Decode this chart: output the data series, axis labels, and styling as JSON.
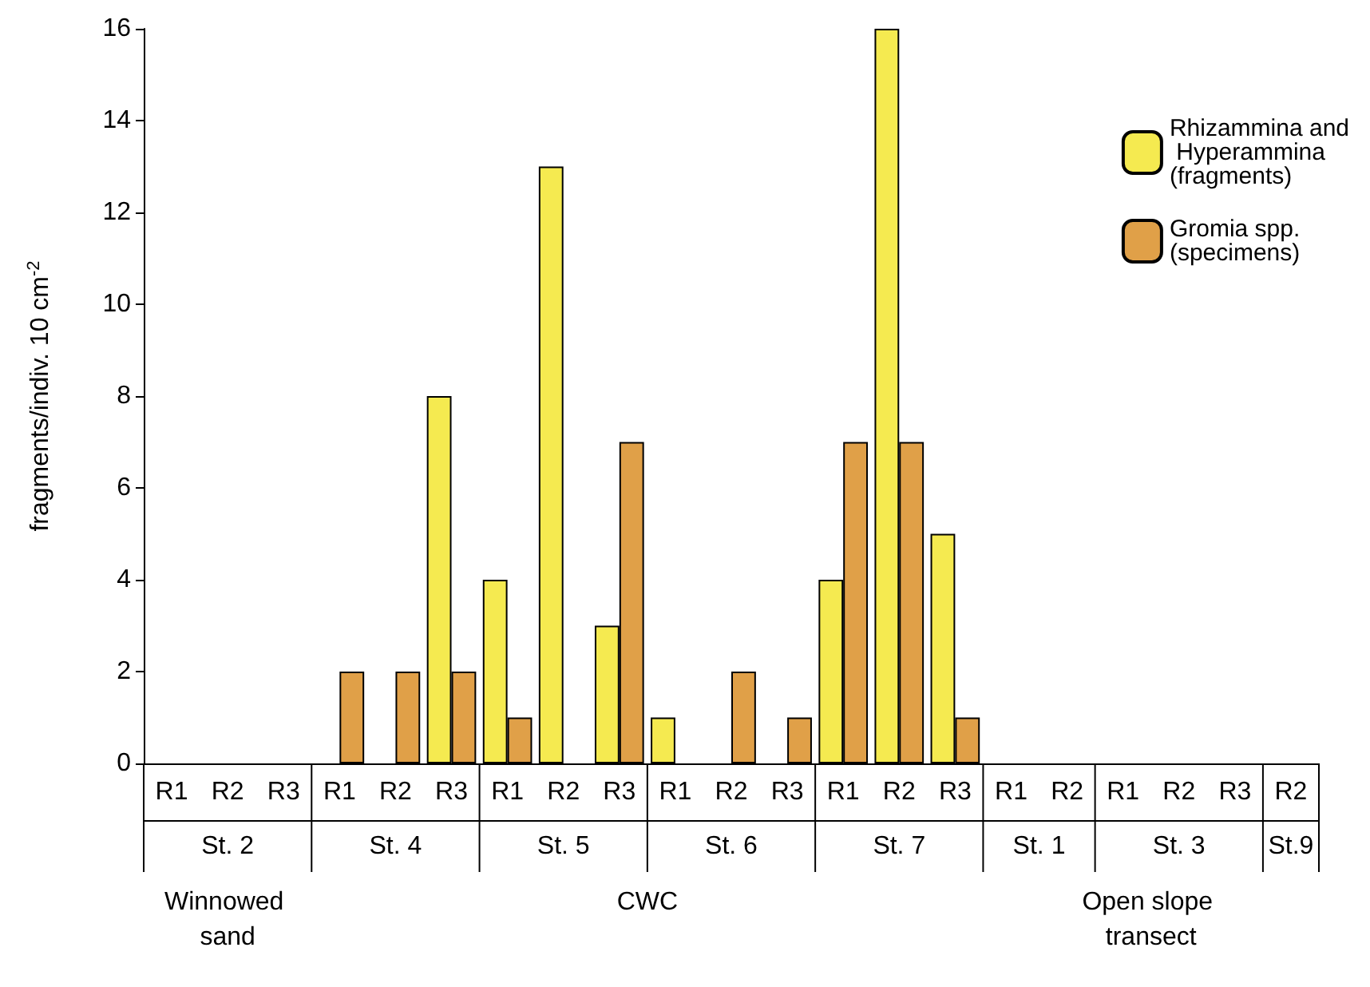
{
  "chart_data": {
    "type": "bar",
    "ylabel": "fragments/indiv. 10 cm$^{-2}$",
    "categories": [
      "R1",
      "R2",
      "R3",
      "R1",
      "R2",
      "R3",
      "R1",
      "R2",
      "R3",
      "R1",
      "R2",
      "R3",
      "R1",
      "R2",
      "R3",
      "R1",
      "R2",
      "R1",
      "R2",
      "R3",
      "R2"
    ],
    "series": [
      {
        "name": "Rhizammina and Hyperammina (fragments)",
        "color": "#f5ea50",
        "values": [
          0,
          0,
          0,
          0,
          0,
          8,
          4,
          13,
          3,
          1,
          0,
          0,
          4,
          16,
          5,
          0,
          0,
          0,
          0,
          0,
          0
        ]
      },
      {
        "name": "Gromia spp. (specimens)",
        "color": "#e0a048",
        "values": [
          0,
          0,
          0,
          2,
          2,
          2,
          1,
          0,
          7,
          0,
          2,
          1,
          7,
          7,
          1,
          0,
          0,
          0,
          0,
          0,
          0
        ]
      }
    ],
    "ylim": [
      0,
      16
    ],
    "yticks": [
      0,
      2,
      4,
      6,
      8,
      10,
      12,
      14,
      16
    ],
    "grid": false,
    "legend": "top right",
    "annotations": [
      "St. 2",
      "St. 4",
      "St. 5",
      "St. 6",
      "St. 7",
      "St. 1",
      "St. 3",
      "St.9",
      "Winnowed sand",
      "CWC",
      "Open slope transect"
    ]
  }
}
